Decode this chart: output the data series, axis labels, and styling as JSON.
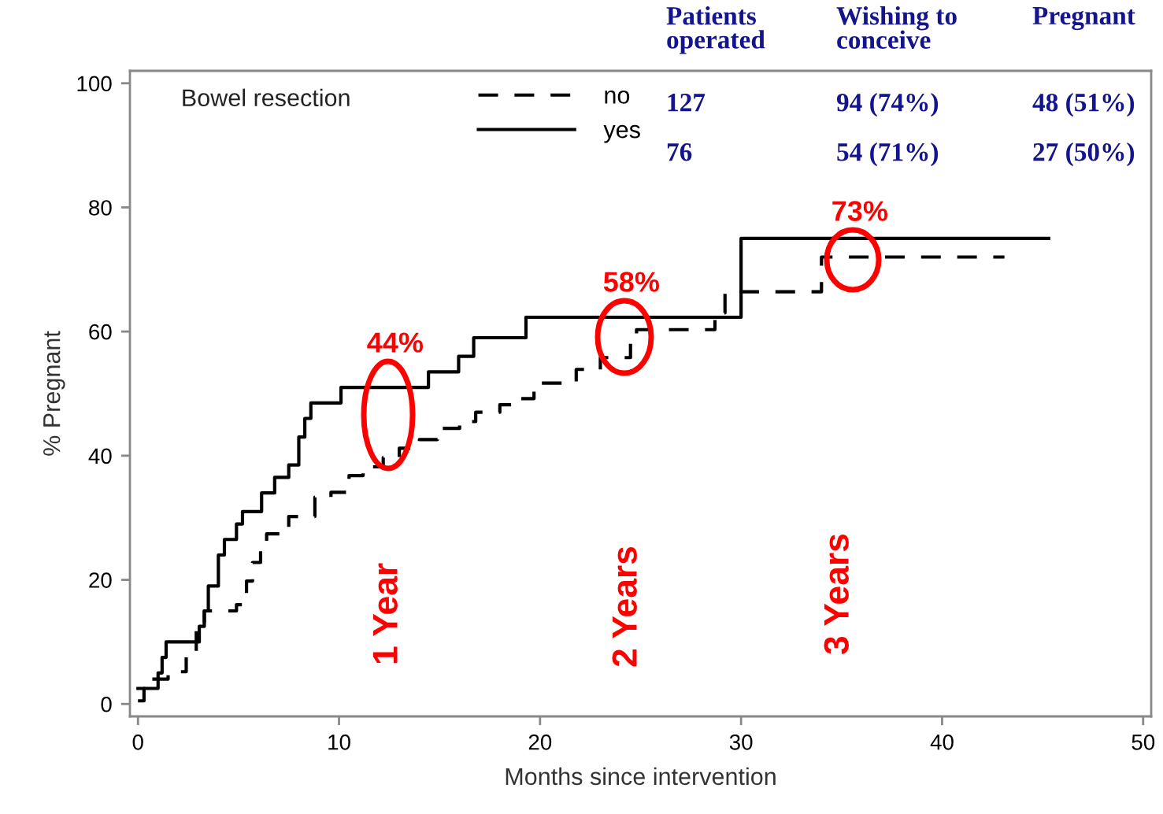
{
  "chart_data": {
    "type": "step",
    "xlabel": "Months since intervention",
    "ylabel": "% Pregnant",
    "legend_title": "Bowel resection",
    "legend": "top left",
    "xlim": [
      -0.4,
      50.4
    ],
    "ylim": [
      -2,
      102
    ],
    "xticks": [
      0,
      10,
      20,
      30,
      40,
      50
    ],
    "yticks": [
      0,
      20,
      40,
      60,
      80,
      100
    ],
    "grid": false,
    "series": [
      {
        "name": "no",
        "color": "#000000",
        "line_style": "dashed",
        "x": [
          0,
          0.3,
          0.6,
          1.5,
          2.4,
          2.9,
          3.3,
          4.9,
          5.4,
          5.7,
          6.1,
          6.4,
          7.5,
          8.8,
          9.6,
          10.5,
          11.2,
          12.2,
          13.0,
          14.0,
          14.9,
          16.0,
          16.8,
          18.0,
          18.8,
          19.7,
          21.8,
          23.0,
          24.5,
          24.8,
          28.7,
          29.2,
          34.0,
          43.1
        ],
        "values": [
          0.5,
          2.5,
          4,
          5.2,
          8,
          12,
          15,
          16,
          19.8,
          22.8,
          25.7,
          27.4,
          30.2,
          33.3,
          34.1,
          36.8,
          38.2,
          39.7,
          41.2,
          42.6,
          44.4,
          45.5,
          47.0,
          48.2,
          49.2,
          51.7,
          53.9,
          55.8,
          59,
          60.3,
          63,
          66.4,
          72,
          72
        ]
      },
      {
        "name": "yes",
        "color": "#000000",
        "line_style": "solid",
        "x": [
          0,
          1.0,
          1.2,
          1.4,
          3.05,
          3.3,
          3.5,
          4.0,
          4.3,
          4.9,
          5.2,
          6.15,
          6.8,
          7.5,
          8.0,
          8.3,
          8.6,
          10.1,
          14.45,
          15.95,
          16.7,
          19.3,
          30.0,
          45.3
        ],
        "values": [
          2.5,
          5,
          7.5,
          10,
          12.5,
          15,
          19,
          24,
          26.5,
          29,
          31,
          34,
          36.5,
          38.5,
          43,
          46,
          48.5,
          51,
          53.5,
          56,
          59,
          62.3,
          75,
          75
        ]
      }
    ],
    "annotations": [
      "44%",
      "58%",
      "73%",
      "1 Year",
      "2 Years",
      "3 Years",
      "Patients\noperated",
      "Wishing to\nconceive",
      "Pregnant",
      "127",
      "94 (74%)",
      "48 (51%)",
      "76",
      "54 (71%)",
      "27 (50%)"
    ]
  }
}
